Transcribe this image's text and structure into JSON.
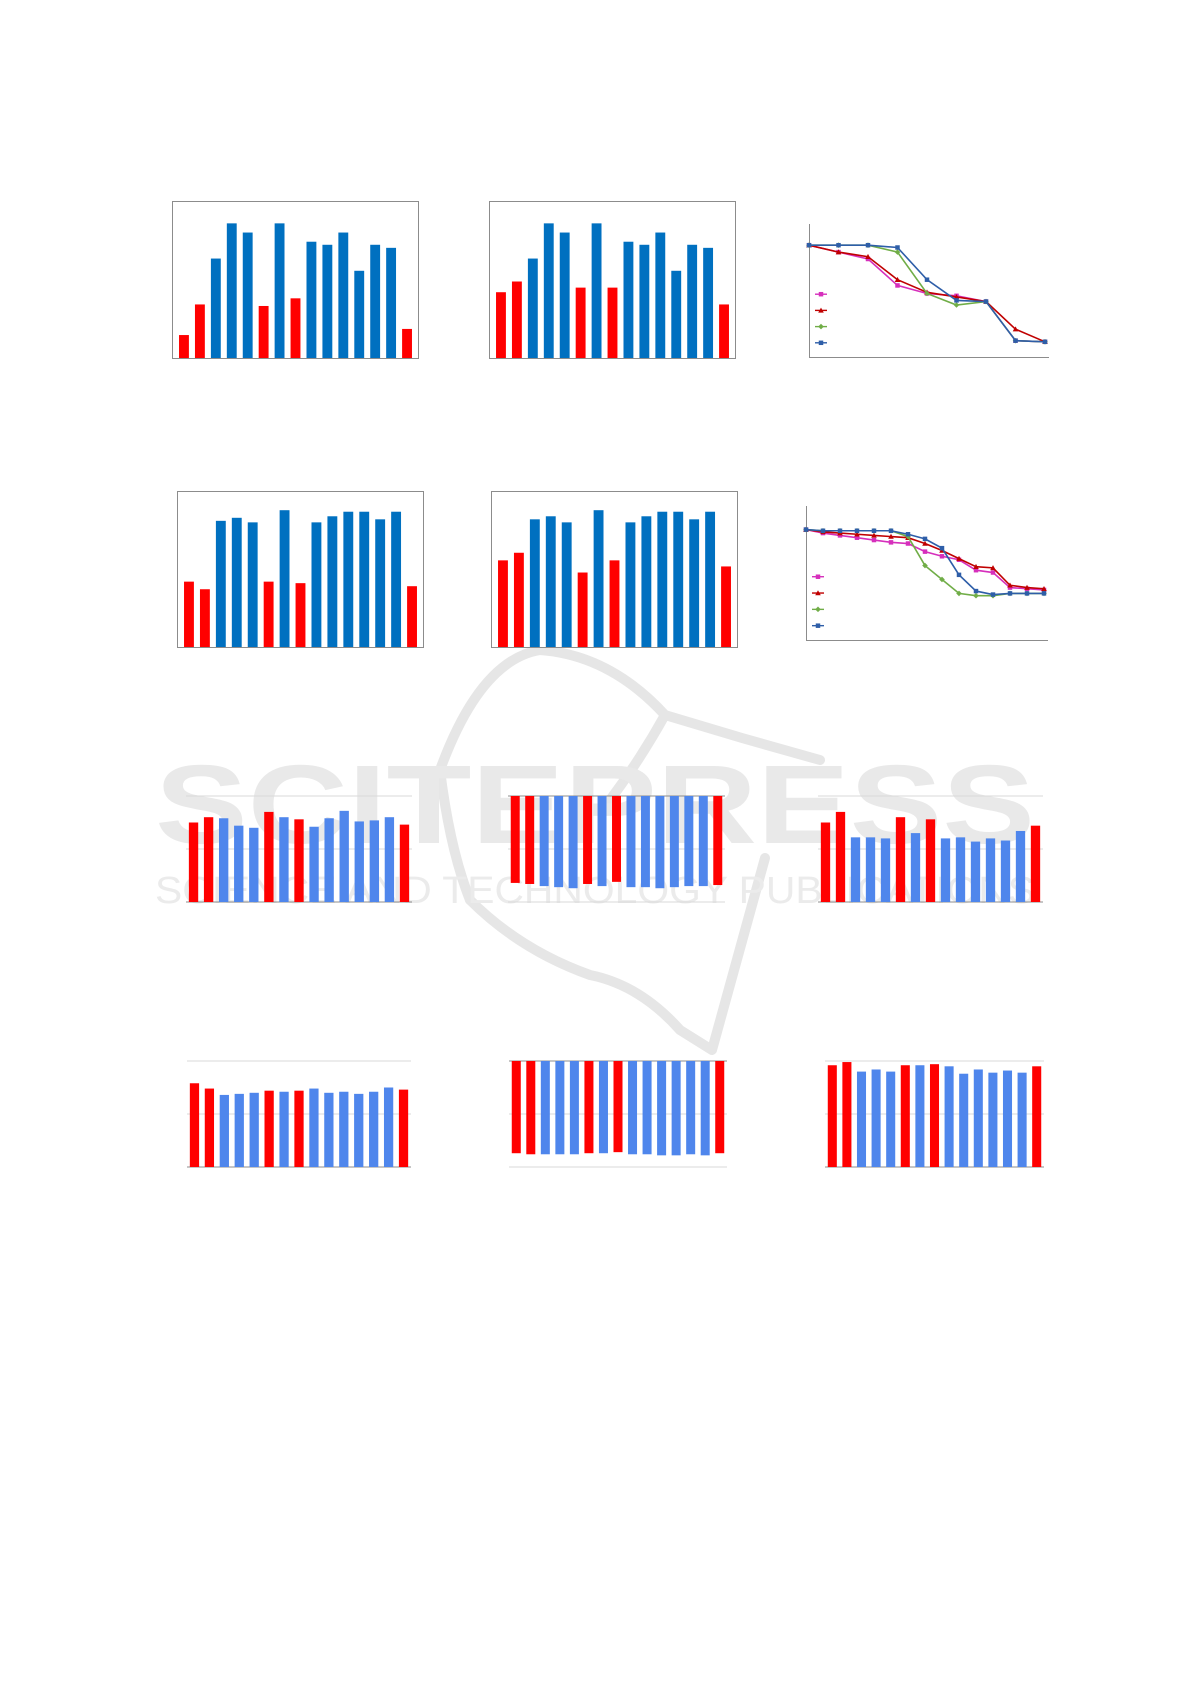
{
  "colors": {
    "highlight": "#ff0000",
    "primary_dark": "#0070c0",
    "primary_light": "#4f86ec",
    "line_magenta": "#d62fbc",
    "line_red": "#c00000",
    "line_green": "#70ad47",
    "line_blue": "#2e5ea8",
    "frame": "#8c8c8c",
    "grid": "#d9d9d9",
    "watermark": "#e6e6e6"
  },
  "watermark": {
    "icon": "scitepress-book-logo-icon",
    "primary_text": "SCITEPRESS",
    "secondary_text": "SCIENCE AND TECHNOLOGY PUBLICATIONS"
  },
  "chart_data": [
    {
      "type": "bar",
      "grid": false,
      "frame": true,
      "ylim": [
        0,
        100
      ],
      "values": [
        15,
        35,
        65,
        88,
        82,
        34,
        88,
        39,
        76,
        74,
        82,
        57,
        74,
        72,
        19
      ],
      "highlight": [
        0,
        1,
        5,
        7,
        14
      ]
    },
    {
      "type": "bar",
      "grid": false,
      "frame": true,
      "ylim": [
        0,
        100
      ],
      "values": [
        43,
        50,
        65,
        88,
        82,
        46,
        88,
        46,
        76,
        74,
        82,
        57,
        74,
        72,
        35
      ],
      "highlight": [
        0,
        1,
        5,
        7,
        14
      ]
    },
    {
      "type": "line",
      "grid": false,
      "ylim": [
        0,
        100
      ],
      "x": [
        1,
        2,
        3,
        4,
        5,
        6,
        7,
        8,
        9
      ],
      "series": [
        {
          "marker": "square",
          "color_key": "line_magenta",
          "values": [
            92,
            86,
            80,
            57,
            50,
            48,
            43,
            9,
            8
          ]
        },
        {
          "marker": "triangle",
          "color_key": "line_red",
          "values": [
            92,
            86,
            82,
            62,
            51,
            47,
            43,
            19,
            8
          ]
        },
        {
          "marker": "diamond",
          "color_key": "line_green",
          "values": [
            92,
            92,
            92,
            86,
            50,
            40,
            43,
            9,
            8
          ]
        },
        {
          "marker": "square",
          "color_key": "line_blue",
          "values": [
            92,
            92,
            92,
            90,
            62,
            44,
            43,
            9,
            8
          ]
        }
      ],
      "legend": "left",
      "legend_markers": [
        "square",
        "triangle",
        "diamond",
        "square"
      ]
    },
    {
      "type": "bar",
      "grid": false,
      "frame": true,
      "ylim": [
        0,
        100
      ],
      "values": [
        43,
        38,
        83,
        85,
        82,
        43,
        90,
        42,
        82,
        86,
        89,
        89,
        84,
        89,
        40
      ],
      "highlight": [
        0,
        1,
        5,
        7,
        14
      ]
    },
    {
      "type": "bar",
      "grid": false,
      "frame": true,
      "ylim": [
        0,
        100
      ],
      "values": [
        57,
        62,
        84,
        86,
        82,
        49,
        90,
        57,
        82,
        86,
        89,
        89,
        84,
        89,
        53
      ],
      "highlight": [
        0,
        1,
        5,
        7,
        14
      ]
    },
    {
      "type": "line",
      "grid": false,
      "ylim": [
        0,
        100
      ],
      "x": [
        1,
        2,
        3,
        4,
        5,
        6,
        7,
        8,
        9,
        10,
        11,
        12,
        13,
        14,
        15
      ],
      "series": [
        {
          "marker": "square",
          "color_key": "line_magenta",
          "values": [
            90,
            87,
            85,
            83,
            81,
            79,
            78,
            71,
            67,
            64,
            55,
            53,
            40,
            39,
            38
          ]
        },
        {
          "marker": "triangle",
          "color_key": "line_red",
          "values": [
            90,
            88,
            87,
            86,
            85,
            84,
            83,
            78,
            72,
            65,
            58,
            57,
            42,
            40,
            39
          ]
        },
        {
          "marker": "diamond",
          "color_key": "line_green",
          "values": [
            90,
            89,
            89,
            89,
            89,
            89,
            84,
            59,
            47,
            35,
            33,
            33,
            35,
            35,
            35
          ]
        },
        {
          "marker": "square",
          "color_key": "line_blue",
          "values": [
            90,
            89,
            89,
            89,
            89,
            89,
            86,
            82,
            74,
            51,
            37,
            34,
            35,
            35,
            35
          ]
        }
      ],
      "legend": "left",
      "legend_markers": [
        "square",
        "triangle",
        "diamond",
        "square"
      ]
    },
    {
      "type": "bar",
      "grid": true,
      "ylim": [
        0,
        100
      ],
      "values": [
        75,
        80,
        79,
        72,
        70,
        85,
        80,
        78,
        71,
        79,
        86,
        76,
        77,
        80,
        73
      ],
      "highlight": [
        0,
        1,
        5,
        7,
        14
      ]
    },
    {
      "type": "bar",
      "grid": true,
      "ylim": [
        -100,
        0
      ],
      "orientation": "down",
      "values": [
        -82,
        -83,
        -85,
        -86,
        -87,
        -83,
        -85,
        -81,
        -86,
        -86,
        -87,
        -86,
        -85,
        -85,
        -84
      ],
      "highlight": [
        0,
        1,
        5,
        7,
        14
      ]
    },
    {
      "type": "bar",
      "grid": true,
      "ylim": [
        0,
        100
      ],
      "values": [
        75,
        85,
        61,
        61,
        60,
        80,
        65,
        78,
        60,
        61,
        57,
        60,
        58,
        67,
        72
      ],
      "highlight": [
        0,
        1,
        5,
        7,
        14
      ]
    },
    {
      "type": "bar",
      "grid": true,
      "ylim": [
        0,
        100
      ],
      "values": [
        79,
        74,
        68,
        69,
        70,
        72,
        71,
        72,
        74,
        70,
        71,
        69,
        71,
        75,
        73
      ],
      "highlight": [
        0,
        1,
        5,
        7,
        14
      ]
    },
    {
      "type": "bar",
      "grid": true,
      "ylim": [
        -100,
        0
      ],
      "orientation": "down",
      "values": [
        -87,
        -88,
        -88,
        -88,
        -88,
        -87,
        -87,
        -86,
        -88,
        -88,
        -89,
        -89,
        -88,
        -89,
        -87
      ],
      "highlight": [
        0,
        1,
        5,
        7,
        14
      ]
    },
    {
      "type": "bar",
      "grid": true,
      "ylim": [
        0,
        100
      ],
      "values": [
        96,
        99,
        90,
        92,
        90,
        96,
        96,
        97,
        95,
        88,
        92,
        89,
        91,
        89,
        95
      ],
      "highlight": [
        0,
        1,
        5,
        7,
        14
      ]
    }
  ]
}
